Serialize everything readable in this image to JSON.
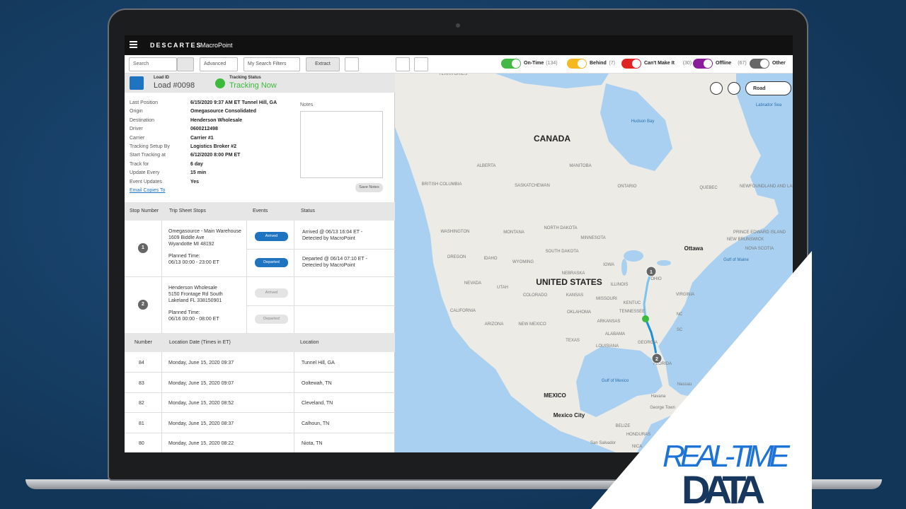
{
  "brand": {
    "name": "DESCARTES",
    "product": "MacroPoint"
  },
  "toolbar": {
    "search": "Search",
    "advanced": "Advanced",
    "filters": "My Search Filters",
    "extract": "Extract"
  },
  "legend": [
    {
      "label": "On-Time",
      "count": "(134)",
      "color": "#44b844"
    },
    {
      "label": "Behind",
      "count": "(7)",
      "color": "#f5b820"
    },
    {
      "label": "Can't Make It",
      "count": "(30)",
      "color": "#e02424"
    },
    {
      "label": "Offline",
      "count": "(67)",
      "color": "#8a1e9a"
    },
    {
      "label": "Other",
      "count": "",
      "color": "#666666"
    }
  ],
  "load": {
    "id_label": "Load ID",
    "id": "Load #0098",
    "status_label": "Tracking Status",
    "status": "Tracking Now"
  },
  "details": [
    [
      "Last Position",
      "6/15/2020 9:37 AM ET Tunnel Hill, GA"
    ],
    [
      "Origin",
      "Omegasource Consolidated"
    ],
    [
      "Destination",
      "Henderson Wholesale"
    ],
    [
      "Driver",
      "0600212498"
    ],
    [
      "Carrier",
      "Carrier #1"
    ],
    [
      "Tracking Setup By",
      "Logistics Broker #2"
    ],
    [
      "Start Tracking at",
      "6/12/2020 8:00 PM ET"
    ],
    [
      "Track for",
      "6 day"
    ],
    [
      "Update Every",
      "15 min"
    ],
    [
      "Event Updates",
      "Yes"
    ]
  ],
  "email_link": "Email Copies To",
  "notes": {
    "label": "Notes",
    "button": "Save Notes"
  },
  "stops": {
    "headers": [
      "Stop Number",
      "Trip Sheet Stops",
      "Events",
      "Status"
    ],
    "rows": [
      {
        "number": 1,
        "address": [
          "Omegasource - Main Warehouse",
          "1609 Biddle Ave",
          "Wyandotte MI 48192"
        ],
        "planned": [
          "Planned Time:",
          "06/13 00:00 - 23:00 ET"
        ],
        "events": [
          {
            "label": "Arrived",
            "status": "Arrived @ 06/13 16:04 ET - Detected by MacroPoint"
          },
          {
            "label": "Departed",
            "status": "Departed @ 06/14 07:10 ET - Detected by MacroPoint"
          }
        ]
      },
      {
        "number": 2,
        "address": [
          "Henderson Wholesale",
          "5150 Frontage Rd South",
          "Lakeland FL 338150901"
        ],
        "planned": [
          "Planned Time:",
          "06/16 00:00 - 08:00 ET"
        ],
        "events": [
          {
            "label": "Arrived",
            "status": ""
          },
          {
            "label": "Departed",
            "status": ""
          }
        ]
      }
    ]
  },
  "locations": {
    "headers": [
      "Number",
      "Location Date (Times in ET)",
      "Location"
    ],
    "rows": [
      [
        84,
        "Monday, June 15, 2020 09:37",
        "Tunnel Hill, GA"
      ],
      [
        83,
        "Monday, June 15, 2020 09:07",
        "Ooltewah, TN"
      ],
      [
        82,
        "Monday, June 15, 2020 08:52",
        "Cleveland, TN"
      ],
      [
        81,
        "Monday, June 15, 2020 08:37",
        "Calhoun, TN"
      ],
      [
        80,
        "Monday, June 15, 2020 08:22",
        "Niota, TN"
      ]
    ]
  },
  "map": {
    "control": "Road",
    "markers": [
      1,
      2
    ],
    "labels": [
      "TERRITORIES",
      "CANADA",
      "Hudson Bay",
      "Labrador Sea",
      "ALBERTA",
      "MANITOBA",
      "BRITISH COLUMBIA",
      "SASKATCHEWAN",
      "ONTARIO",
      "QUEBEC",
      "NEWFOUNDLAND AND LABRADOR",
      "WASHINGTON",
      "MONTANA",
      "NORTH DAKOTA",
      "MINNESOTA",
      "PRINCE EDWARD ISLAND",
      "NEW BRUNSWICK",
      "NOVA SCOTIA",
      "SOUTH DAKOTA",
      "Ottawa",
      "OREGON",
      "IDAHO",
      "WYOMING",
      "Gulf of Maine",
      "NEBRASKA",
      "IOWA",
      "OHIO",
      "NEVADA",
      "UTAH",
      "UNITED STATES",
      "ILLINOIS",
      "COLORADO",
      "KANSAS",
      "MISSOURI",
      "KENTUC",
      "VIRGINIA",
      "CALIFORNIA",
      "OKLAHOMA",
      "TENNESSEE",
      "NC",
      "ARIZONA",
      "NEW MEXICO",
      "ARKANSAS",
      "SC",
      "ALABAMA",
      "TEXAS",
      "GEORGIA",
      "LOUISIANA",
      "FLORIDA",
      "Gulf of Mexico",
      "Nassau",
      "MEXICO",
      "Havana",
      "George Town",
      "Mexico City",
      "BELIZE",
      "HONDURAS",
      "San Salvador",
      "NICA"
    ]
  },
  "overlay": {
    "line1": "REAL-TIME",
    "line2": "DATA"
  }
}
